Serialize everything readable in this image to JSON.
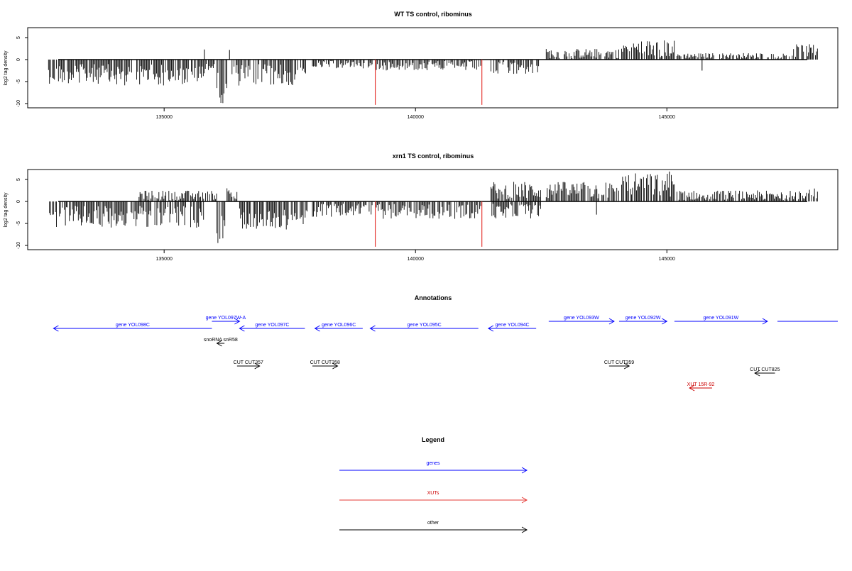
{
  "chart_data": [
    {
      "type": "bar",
      "title": "WT TS control, ribominus",
      "ylabel": "log2 tag density",
      "xlabel": "",
      "xlim": [
        132300,
        148400
      ],
      "ylim": [
        -11,
        7
      ],
      "yticks": [
        -10,
        -5,
        0,
        5
      ],
      "xticks": [
        135000,
        140000,
        145000
      ],
      "grid": false,
      "series": [
        {
          "description": "signal bars",
          "segments": [
            {
              "x": [
                132700,
                133900
              ],
              "y": [
                -5.5,
                -1.0
              ]
            },
            {
              "x": [
                133900,
                135800
              ],
              "y": [
                -6.0,
                -1.0
              ]
            },
            {
              "x": [
                135800,
                136050
              ],
              "y": [
                -2.5,
                -0.5
              ]
            },
            {
              "x": [
                136050,
                136250
              ],
              "y": [
                -10.0,
                -3.0
              ]
            },
            {
              "x": [
                136350,
                137850
              ],
              "y": [
                -6.0,
                -1.0
              ]
            },
            {
              "x": [
                137950,
                139150
              ],
              "y": [
                -2.0,
                -0.3
              ]
            },
            {
              "x": [
                139200,
                141300
              ],
              "y": [
                -2.5,
                -0.3
              ]
            },
            {
              "x": [
                141500,
                142500
              ],
              "y": [
                -3.5,
                -0.5
              ]
            },
            {
              "x": [
                142600,
                144050
              ],
              "y": [
                0.3,
                2.5
              ]
            },
            {
              "x": [
                144100,
                145150
              ],
              "y": [
                0.5,
                4.5
              ]
            },
            {
              "x": [
                145200,
                147500
              ],
              "y": [
                0.3,
                1.5
              ]
            },
            {
              "x": [
                147500,
                148000
              ],
              "y": [
                0.5,
                3.5
              ]
            }
          ],
          "spikes": [
            {
              "x": 135800,
              "y": 2.3
            },
            {
              "x": 136300,
              "y": 2.2
            },
            {
              "x": 145700,
              "y": -2.5
            }
          ]
        }
      ],
      "markers": [
        {
          "x": 139200,
          "y": -10.3,
          "color": "#e53935"
        },
        {
          "x": 141320,
          "y": -10.3,
          "color": "#e53935"
        }
      ]
    },
    {
      "type": "bar",
      "title": "xrn1 TS control, ribominus",
      "ylabel": "log2 tag density",
      "xlabel": "",
      "xlim": [
        132300,
        148400
      ],
      "ylim": [
        -11,
        7
      ],
      "yticks": [
        -10,
        -5,
        0,
        5
      ],
      "xticks": [
        135000,
        140000,
        145000
      ],
      "grid": false,
      "series": [
        {
          "description": "signal bars",
          "segments": [
            {
              "x": [
                132700,
                135800
              ],
              "y": [
                -6.0,
                -1.0
              ]
            },
            {
              "x": [
                134500,
                136050
              ],
              "y": [
                0.3,
                2.5
              ]
            },
            {
              "x": [
                136050,
                136250
              ],
              "y": [
                -10.5,
                -3.0
              ]
            },
            {
              "x": [
                136250,
                136450
              ],
              "y": [
                0.5,
                3.3
              ]
            },
            {
              "x": [
                136500,
                137850
              ],
              "y": [
                -6.5,
                -1.5
              ]
            },
            {
              "x": [
                137950,
                139150
              ],
              "y": [
                -3.5,
                -0.5
              ]
            },
            {
              "x": [
                139200,
                141300
              ],
              "y": [
                -4.0,
                -0.5
              ]
            },
            {
              "x": [
                141500,
                142500
              ],
              "y": [
                -4.0,
                -0.5
              ]
            },
            {
              "x": [
                141500,
                142500
              ],
              "y": [
                0.5,
                4.5
              ]
            },
            {
              "x": [
                142600,
                144050
              ],
              "y": [
                0.5,
                4.5
              ]
            },
            {
              "x": [
                144100,
                145150
              ],
              "y": [
                1.0,
                6.5
              ]
            },
            {
              "x": [
                145200,
                147500
              ],
              "y": [
                0.3,
                2.5
              ]
            },
            {
              "x": [
                147500,
                148000
              ],
              "y": [
                0.5,
                3.0
              ]
            }
          ],
          "spikes": [
            {
              "x": 145050,
              "y": 6.8
            },
            {
              "x": 143600,
              "y": -3.0
            }
          ]
        }
      ],
      "markers": [
        {
          "x": 139200,
          "y": -10.3,
          "color": "#e53935"
        },
        {
          "x": 141320,
          "y": -10.3,
          "color": "#e53935"
        }
      ]
    }
  ],
  "annotations": {
    "title": "Annotations",
    "xlim": [
      132300,
      148400
    ],
    "features": [
      {
        "label": "gene YOL098C",
        "start": 132800,
        "end": 135950,
        "row": 1,
        "dir": "left",
        "color": "#0000ff"
      },
      {
        "label": "gene YOL097W-A",
        "start": 135950,
        "end": 136500,
        "row": 0,
        "dir": "right",
        "color": "#0000ff"
      },
      {
        "label": "gene YOL097C",
        "start": 136500,
        "end": 137800,
        "row": 1,
        "dir": "left",
        "color": "#0000ff"
      },
      {
        "label": "gene YOL096C",
        "start": 138000,
        "end": 138950,
        "row": 1,
        "dir": "left",
        "color": "#0000ff"
      },
      {
        "label": "gene YOL095C",
        "start": 139100,
        "end": 141250,
        "row": 1,
        "dir": "left",
        "color": "#0000ff"
      },
      {
        "label": "gene YOL094C",
        "start": 141450,
        "end": 142400,
        "row": 1,
        "dir": "left",
        "color": "#0000ff"
      },
      {
        "label": "gene YOL093W",
        "start": 142650,
        "end": 143950,
        "row": 0,
        "dir": "right",
        "color": "#0000ff"
      },
      {
        "label": "gene YOL092W",
        "start": 144050,
        "end": 145000,
        "row": 0,
        "dir": "right",
        "color": "#0000ff"
      },
      {
        "label": "gene YOL091W",
        "start": 145150,
        "end": 147000,
        "row": 0,
        "dir": "right",
        "color": "#0000ff"
      },
      {
        "label": "",
        "start": 147200,
        "end": 148400,
        "row": 0,
        "dir": "none",
        "color": "#0000ff"
      },
      {
        "label": "snoRNA snR58",
        "start": 136050,
        "end": 136200,
        "row": 2,
        "dir": "left",
        "color": "#000000"
      },
      {
        "label": "CUT CUT357",
        "start": 136450,
        "end": 136900,
        "row": 3,
        "dir": "right",
        "color": "#000000"
      },
      {
        "label": "CUT CUT358",
        "start": 137950,
        "end": 138450,
        "row": 3,
        "dir": "right",
        "color": "#000000"
      },
      {
        "label": "CUT CUT359",
        "start": 143850,
        "end": 144250,
        "row": 3,
        "dir": "right",
        "color": "#000000"
      },
      {
        "label": "CUT CUT825",
        "start": 146750,
        "end": 147150,
        "row": 4,
        "dir": "left",
        "color": "#000000"
      },
      {
        "label": "XUT 15R-92",
        "start": 145450,
        "end": 145900,
        "row": 5,
        "dir": "left",
        "color": "#cc0000"
      }
    ]
  },
  "legend": {
    "title": "Legend",
    "items": [
      {
        "label": "genes",
        "color": "#0000ff"
      },
      {
        "label": "XUTs",
        "color": "#e53935"
      },
      {
        "label": "other",
        "color": "#000000"
      }
    ]
  }
}
